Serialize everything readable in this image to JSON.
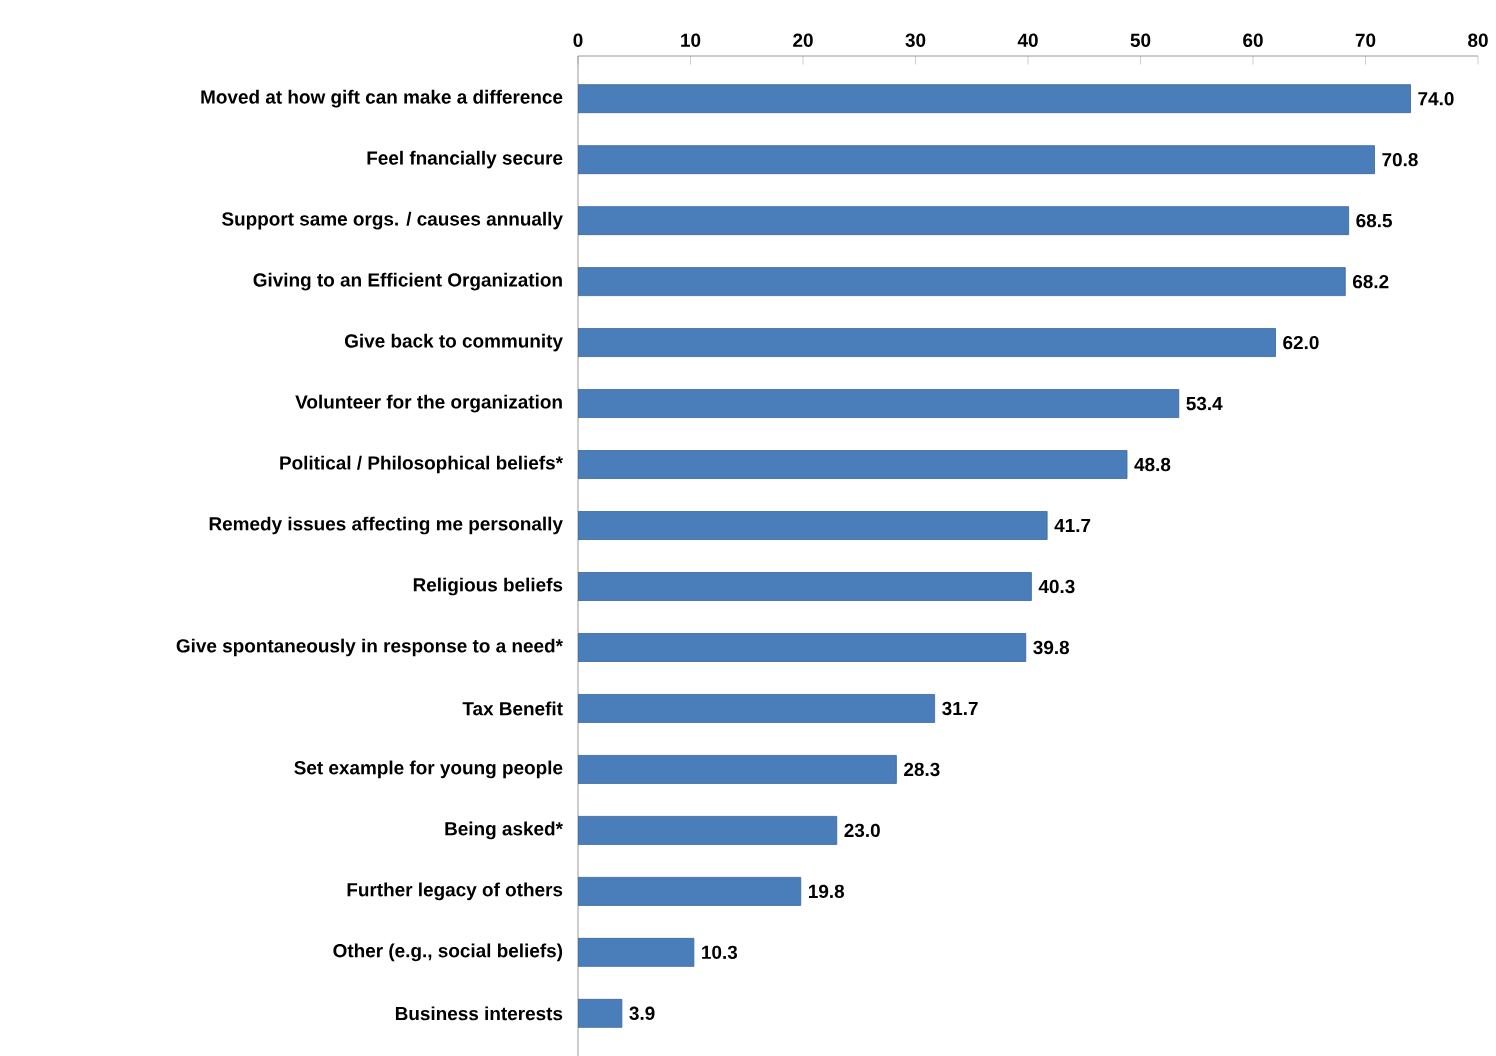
{
  "chart_data": {
    "type": "bar",
    "orientation": "horizontal",
    "categories": [
      "Moved at how gift can make a difference",
      "Feel fnancially secure",
      "Support same orgs. / causes annually",
      "Giving to an Efficient Organization",
      "Give back to community",
      "Volunteer for the organization",
      "Political / Philosophical beliefs*",
      "Remedy issues affecting me personally",
      "Religious beliefs",
      "Give spontaneously in response to a need*",
      "Tax Benefit",
      "Set example for young people",
      "Being asked*",
      "Further legacy of others",
      "Other (e.g., social beliefs)",
      "Business interests"
    ],
    "values": [
      74.0,
      70.8,
      68.5,
      68.2,
      62.0,
      53.4,
      48.8,
      41.7,
      40.3,
      39.8,
      31.7,
      28.3,
      23.0,
      19.8,
      10.3,
      3.9
    ],
    "value_labels": [
      "74.0",
      "70.8",
      "68.5",
      "68.2",
      "62.0",
      "53.4",
      "48.8",
      "41.7",
      "40.3",
      "39.8",
      "31.7",
      "28.3",
      "23.0",
      "19.8",
      "10.3",
      "3.9"
    ],
    "color": "#4a7ebb",
    "xlim": [
      0,
      80
    ],
    "xticks": [
      0,
      10,
      20,
      30,
      40,
      50,
      60,
      70,
      80
    ]
  }
}
